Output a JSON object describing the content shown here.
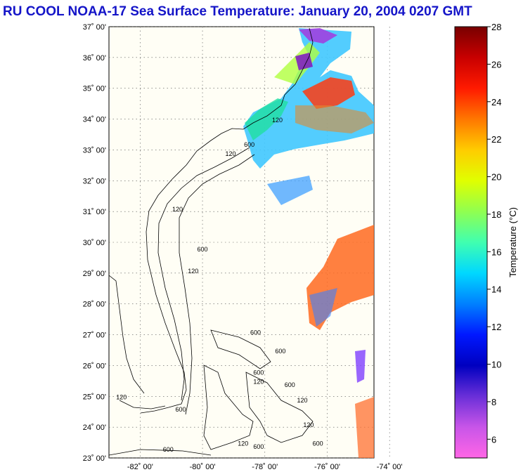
{
  "title": "RU COOL  NOAA-17  Sea Surface Temperature:  January 20, 2004 0207 GMT",
  "map": {
    "lat_range": [
      23,
      37
    ],
    "lon_range": [
      -83,
      -74.5
    ],
    "lat_ticks": [
      {
        "lat": 37,
        "label": "37˚ 00'"
      },
      {
        "lat": 36,
        "label": "36˚ 00'"
      },
      {
        "lat": 35,
        "label": "35˚ 00'"
      },
      {
        "lat": 34,
        "label": "34˚ 00'"
      },
      {
        "lat": 33,
        "label": "33˚ 00'"
      },
      {
        "lat": 32,
        "label": "32˚ 00'"
      },
      {
        "lat": 31,
        "label": "31˚ 00'"
      },
      {
        "lat": 30,
        "label": "30˚ 00'"
      },
      {
        "lat": 29,
        "label": "29˚ 00'"
      },
      {
        "lat": 28,
        "label": "28˚ 00'"
      },
      {
        "lat": 27,
        "label": "27˚ 00'"
      },
      {
        "lat": 26,
        "label": "26˚ 00'"
      },
      {
        "lat": 25,
        "label": "25˚ 00'"
      },
      {
        "lat": 24,
        "label": "24˚ 00'"
      },
      {
        "lat": 23,
        "label": "23˚ 00'"
      }
    ],
    "lon_ticks": [
      {
        "lon": -82,
        "label": "-82˚ 00'"
      },
      {
        "lon": -80,
        "label": "-80˚ 00'"
      },
      {
        "lon": -78,
        "label": "-78˚ 00'"
      },
      {
        "lon": -76,
        "label": "-76˚ 00'"
      },
      {
        "lon": -74,
        "label": "-74˚ 00'"
      }
    ],
    "contour_labels": [
      {
        "text": "120",
        "lon": -77.6,
        "lat": 33.9
      },
      {
        "text": "600",
        "lon": -78.5,
        "lat": 33.1
      },
      {
        "text": "120",
        "lon": -79.1,
        "lat": 32.8
      },
      {
        "text": "120",
        "lon": -80.8,
        "lat": 31.0
      },
      {
        "text": "600",
        "lon": -80.0,
        "lat": 29.7
      },
      {
        "text": "120",
        "lon": -80.3,
        "lat": 29.0
      },
      {
        "text": "600",
        "lon": -78.3,
        "lat": 27.0
      },
      {
        "text": "600",
        "lon": -77.5,
        "lat": 26.4
      },
      {
        "text": "600",
        "lon": -78.2,
        "lat": 25.7
      },
      {
        "text": "120",
        "lon": -78.2,
        "lat": 25.4
      },
      {
        "text": "600",
        "lon": -77.2,
        "lat": 25.3
      },
      {
        "text": "120",
        "lon": -76.8,
        "lat": 24.8
      },
      {
        "text": "120",
        "lon": -82.6,
        "lat": 24.9
      },
      {
        "text": "600",
        "lon": -80.7,
        "lat": 24.5
      },
      {
        "text": "120",
        "lon": -78.7,
        "lat": 23.4
      },
      {
        "text": "600",
        "lon": -78.2,
        "lat": 23.3
      },
      {
        "text": "600",
        "lon": -76.3,
        "lat": 23.4
      },
      {
        "text": "120",
        "lon": -76.6,
        "lat": 24.0
      },
      {
        "text": "600",
        "lon": -81.1,
        "lat": 23.2
      }
    ],
    "contour_levels_m": [
      120,
      600
    ]
  },
  "colorbar": {
    "min": 5,
    "max": 28,
    "ticks": [
      28,
      26,
      24,
      22,
      20,
      18,
      16,
      14,
      12,
      10,
      8,
      6
    ],
    "label": "Temperature (°C)",
    "colors": [
      "#ff66e6",
      "#c855e8",
      "#6a2fd8",
      "#0000c0",
      "#0018ff",
      "#0080ff",
      "#00d8ff",
      "#40ffb0",
      "#90ff50",
      "#e0ff00",
      "#ffcc00",
      "#ff7700",
      "#ff1a00",
      "#c80000",
      "#780000"
    ]
  }
}
